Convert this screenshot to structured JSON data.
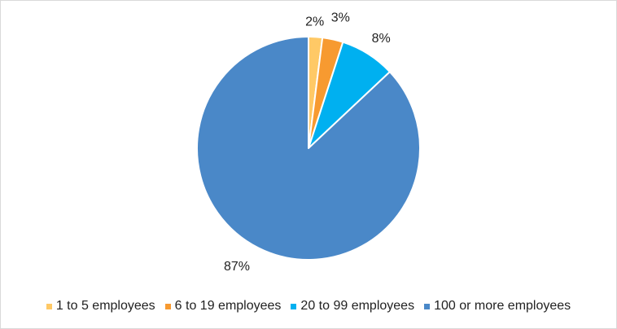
{
  "chart_data": {
    "type": "pie",
    "title": "",
    "categories": [
      "1 to 5 employees",
      "6 to 19 employees",
      "20 to 99 employees",
      "100 or more employees"
    ],
    "values": [
      2,
      3,
      8,
      87
    ],
    "data_labels": [
      "2%",
      "3%",
      "8%",
      "87%"
    ],
    "colors": [
      "#ffc966",
      "#f79a30",
      "#00b0f0",
      "#4a88c8"
    ],
    "start_angle": "12 o'clock",
    "direction": "clockwise",
    "legend_position": "bottom"
  }
}
